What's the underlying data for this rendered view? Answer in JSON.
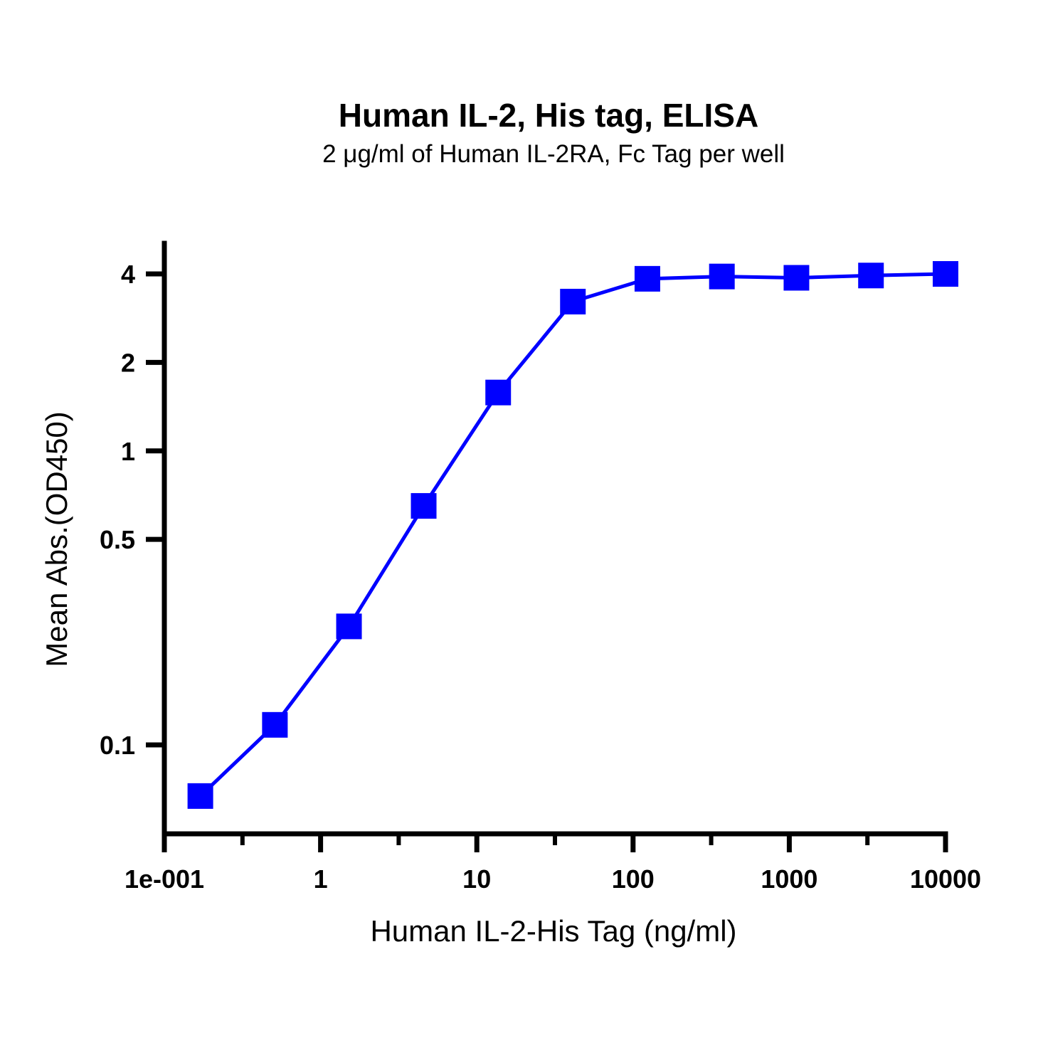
{
  "chart_data": {
    "type": "line",
    "title": "Human IL-2, His tag, ELISA",
    "subtitle": "2 μg/ml of Human IL-2RA, Fc Tag per well",
    "xlabel": "Human IL-2-His Tag (ng/ml)",
    "ylabel": "Mean Abs.(OD450)",
    "x_scale": "log",
    "y_scale": "log",
    "xlim": [
      0.1,
      10000
    ],
    "ylim": [
      0.05,
      4.8
    ],
    "x_ticks": [
      0.1,
      1,
      10,
      100,
      1000,
      10000
    ],
    "x_tick_labels": [
      "1e-001",
      "1",
      "10",
      "100",
      "1000",
      "10000"
    ],
    "y_ticks": [
      0.1,
      0.5,
      1,
      2,
      4
    ],
    "y_tick_labels": [
      "0.1",
      "0.5",
      "1",
      "2",
      "4"
    ],
    "grid": false,
    "series": [
      {
        "color": "#0000ff",
        "marker": "square",
        "x": [
          0.17,
          0.51,
          1.52,
          4.57,
          13.7,
          41.2,
          123.5,
          370.4,
          1111,
          3333,
          10000
        ],
        "y": [
          0.067,
          0.117,
          0.253,
          0.65,
          1.58,
          3.22,
          3.85,
          3.92,
          3.88,
          3.95,
          4.0
        ]
      }
    ]
  }
}
